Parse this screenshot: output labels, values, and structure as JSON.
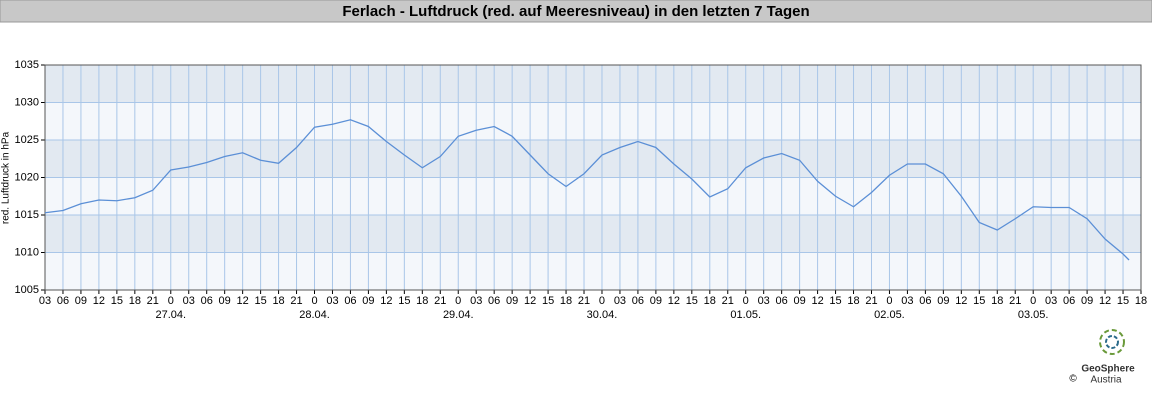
{
  "chart_data": {
    "type": "line",
    "title": "Ferlach - Luftdruck (red. auf Meeresniveau) in den letzten 7 Tagen",
    "y_label": "red. Luftdruck in hPa",
    "x": [
      3,
      6,
      9,
      12,
      15,
      18,
      21,
      24,
      27,
      30,
      33,
      36,
      39,
      42,
      45,
      48,
      51,
      54,
      57,
      60,
      63,
      66,
      69,
      72,
      75,
      78,
      81,
      84,
      87,
      90,
      93,
      96,
      99,
      102,
      105,
      108,
      111,
      114,
      117,
      120,
      123,
      126,
      129,
      132,
      135,
      138,
      141,
      144,
      147,
      150,
      153,
      156,
      159,
      162,
      165,
      168,
      171,
      174,
      177,
      180,
      183,
      184
    ],
    "series": [
      {
        "name": "Luftdruck",
        "color": "#5b8fd6",
        "values": [
          1015.3,
          1015.6,
          1016.5,
          1017.0,
          1016.9,
          1017.3,
          1018.3,
          1021.0,
          1021.4,
          1022.0,
          1022.8,
          1023.3,
          1022.3,
          1021.9,
          1024.0,
          1026.7,
          1027.1,
          1027.7,
          1026.8,
          1024.8,
          1023.0,
          1021.3,
          1022.8,
          1025.5,
          1026.3,
          1026.8,
          1025.5,
          1023.0,
          1020.5,
          1018.8,
          1020.5,
          1023.0,
          1024.0,
          1024.8,
          1024.0,
          1021.8,
          1019.8,
          1017.4,
          1018.5,
          1021.3,
          1022.6,
          1023.2,
          1022.3,
          1019.5,
          1017.5,
          1016.1,
          1018.0,
          1020.3,
          1021.8,
          1021.8,
          1020.5,
          1017.5,
          1014.0,
          1013.0,
          1014.5,
          1016.1,
          1016.0,
          1016.0,
          1014.5,
          1011.8,
          1009.8,
          1009.0
        ]
      }
    ],
    "xlim": [
      3,
      186
    ],
    "xticks": [
      {
        "value": 3,
        "label": "03"
      },
      {
        "value": 6,
        "label": "06"
      },
      {
        "value": 9,
        "label": "09"
      },
      {
        "value": 12,
        "label": "12"
      },
      {
        "value": 15,
        "label": "15"
      },
      {
        "value": 18,
        "label": "18"
      },
      {
        "value": 21,
        "label": "21"
      },
      {
        "value": 24,
        "label": "0"
      },
      {
        "value": 27,
        "label": "03"
      },
      {
        "value": 30,
        "label": "06"
      },
      {
        "value": 33,
        "label": "09"
      },
      {
        "value": 36,
        "label": "12"
      },
      {
        "value": 39,
        "label": "15"
      },
      {
        "value": 42,
        "label": "18"
      },
      {
        "value": 45,
        "label": "21"
      },
      {
        "value": 48,
        "label": "0"
      },
      {
        "value": 51,
        "label": "03"
      },
      {
        "value": 54,
        "label": "06"
      },
      {
        "value": 57,
        "label": "09"
      },
      {
        "value": 60,
        "label": "12"
      },
      {
        "value": 63,
        "label": "15"
      },
      {
        "value": 66,
        "label": "18"
      },
      {
        "value": 69,
        "label": "21"
      },
      {
        "value": 72,
        "label": "0"
      },
      {
        "value": 75,
        "label": "03"
      },
      {
        "value": 78,
        "label": "06"
      },
      {
        "value": 81,
        "label": "09"
      },
      {
        "value": 84,
        "label": "12"
      },
      {
        "value": 87,
        "label": "15"
      },
      {
        "value": 90,
        "label": "18"
      },
      {
        "value": 93,
        "label": "21"
      },
      {
        "value": 96,
        "label": "0"
      },
      {
        "value": 99,
        "label": "03"
      },
      {
        "value": 102,
        "label": "06"
      },
      {
        "value": 105,
        "label": "09"
      },
      {
        "value": 108,
        "label": "12"
      },
      {
        "value": 111,
        "label": "15"
      },
      {
        "value": 114,
        "label": "18"
      },
      {
        "value": 117,
        "label": "21"
      },
      {
        "value": 120,
        "label": "0"
      },
      {
        "value": 123,
        "label": "03"
      },
      {
        "value": 126,
        "label": "06"
      },
      {
        "value": 129,
        "label": "09"
      },
      {
        "value": 132,
        "label": "12"
      },
      {
        "value": 135,
        "label": "15"
      },
      {
        "value": 138,
        "label": "18"
      },
      {
        "value": 141,
        "label": "21"
      },
      {
        "value": 144,
        "label": "0"
      },
      {
        "value": 147,
        "label": "03"
      },
      {
        "value": 150,
        "label": "06"
      },
      {
        "value": 153,
        "label": "09"
      },
      {
        "value": 156,
        "label": "12"
      },
      {
        "value": 159,
        "label": "15"
      },
      {
        "value": 162,
        "label": "18"
      },
      {
        "value": 165,
        "label": "21"
      },
      {
        "value": 168,
        "label": "0"
      },
      {
        "value": 171,
        "label": "03"
      },
      {
        "value": 174,
        "label": "06"
      },
      {
        "value": 177,
        "label": "09"
      },
      {
        "value": 180,
        "label": "12"
      },
      {
        "value": 183,
        "label": "15"
      },
      {
        "value": 186,
        "label": "18"
      }
    ],
    "date_labels": [
      {
        "value": 24,
        "label": "27.04."
      },
      {
        "value": 48,
        "label": "28.04."
      },
      {
        "value": 72,
        "label": "29.04."
      },
      {
        "value": 96,
        "label": "30.04."
      },
      {
        "value": 120,
        "label": "01.05."
      },
      {
        "value": 144,
        "label": "02.05."
      },
      {
        "value": 168,
        "label": "03.05."
      }
    ],
    "ylim": [
      1005,
      1035
    ],
    "yticks": [
      1005,
      1010,
      1015,
      1020,
      1025,
      1030,
      1035
    ],
    "grid": true
  },
  "logo": {
    "name": "GeoSphere",
    "sub": "Austria",
    "copyright": "©"
  }
}
